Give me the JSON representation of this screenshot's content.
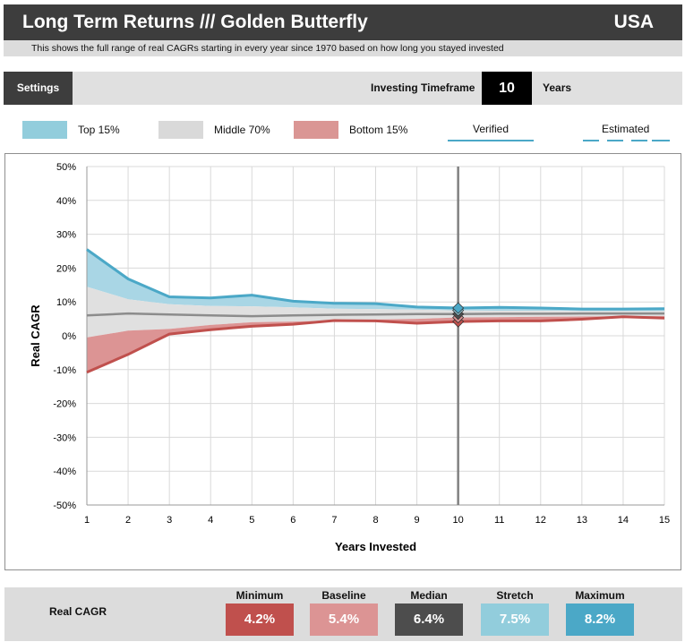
{
  "header": {
    "title": "Long Term Returns /// Golden Butterfly",
    "region": "USA",
    "subtitle": "This shows the full range of real CAGRs starting in every year since 1970 based on how long you stayed invested"
  },
  "settings": {
    "button_label": "Settings",
    "timeframe_label": "Investing Timeframe",
    "timeframe_value": "10",
    "timeframe_unit": "Years"
  },
  "legend": {
    "top": "Top 15%",
    "middle": "Middle 70%",
    "bottom": "Bottom 15%",
    "verified": "Verified",
    "estimated": "Estimated"
  },
  "colors": {
    "top_band": "#a9d6e5",
    "middle_band": "#e0e0e0",
    "bottom_band": "#dc9494",
    "top_line": "#4ba8c7",
    "median_line": "#8c8c8c",
    "bottom_line": "#c0504d"
  },
  "chart_data": {
    "type": "area",
    "xlabel": "Years Invested",
    "ylabel": "Real CAGR",
    "x": [
      1,
      2,
      3,
      4,
      5,
      6,
      7,
      8,
      9,
      10,
      11,
      12,
      13,
      14,
      15
    ],
    "xlim": [
      1,
      15
    ],
    "ylim": [
      -50,
      50
    ],
    "yticks": [
      50,
      40,
      30,
      20,
      10,
      0,
      -10,
      -20,
      -30,
      -40,
      -50
    ],
    "ytick_labels": [
      "50%",
      "40%",
      "30%",
      "20%",
      "10%",
      "0%",
      "-10%",
      "-20%",
      "-30%",
      "-40%",
      "-50%"
    ],
    "grid": true,
    "series": [
      {
        "name": "Maximum",
        "values": [
          25.5,
          16.8,
          11.5,
          11.2,
          12.0,
          10.2,
          9.6,
          9.5,
          8.5,
          8.2,
          8.4,
          8.2,
          7.9,
          7.9,
          8.0
        ]
      },
      {
        "name": "Top 15%",
        "values": [
          14.5,
          10.8,
          9.3,
          8.8,
          8.7,
          8.4,
          8.0,
          7.9,
          7.7,
          7.5,
          7.4,
          7.4,
          7.3,
          7.3,
          7.3
        ]
      },
      {
        "name": "Median",
        "values": [
          6.0,
          6.6,
          6.3,
          6.0,
          5.8,
          6.0,
          6.2,
          6.3,
          6.4,
          6.4,
          6.5,
          6.5,
          6.6,
          6.6,
          6.6
        ]
      },
      {
        "name": "Bottom 15%",
        "values": [
          -0.5,
          1.5,
          2.0,
          3.2,
          4.0,
          4.2,
          4.5,
          4.8,
          5.0,
          5.4,
          5.5,
          5.6,
          5.7,
          5.8,
          5.8
        ]
      },
      {
        "name": "Minimum",
        "values": [
          -10.8,
          -5.5,
          0.5,
          1.8,
          2.8,
          3.4,
          4.5,
          4.4,
          3.7,
          4.2,
          4.4,
          4.4,
          4.9,
          5.6,
          5.2
        ]
      }
    ],
    "selected_x": 10,
    "markers": [
      {
        "name": "Maximum",
        "value": 8.2
      },
      {
        "name": "Stretch",
        "value": 7.5
      },
      {
        "name": "Median",
        "value": 6.4
      },
      {
        "name": "Baseline",
        "value": 5.4
      },
      {
        "name": "Minimum",
        "value": 4.2
      }
    ]
  },
  "stats": {
    "label": "Real CAGR",
    "items": [
      {
        "name": "Minimum",
        "value": "4.2%",
        "color": "#c0504d"
      },
      {
        "name": "Baseline",
        "value": "5.4%",
        "color": "#dc9494"
      },
      {
        "name": "Median",
        "value": "6.4%",
        "color": "#4d4d4d"
      },
      {
        "name": "Stretch",
        "value": "7.5%",
        "color": "#92cddc"
      },
      {
        "name": "Maximum",
        "value": "8.2%",
        "color": "#4ba8c7"
      }
    ]
  }
}
